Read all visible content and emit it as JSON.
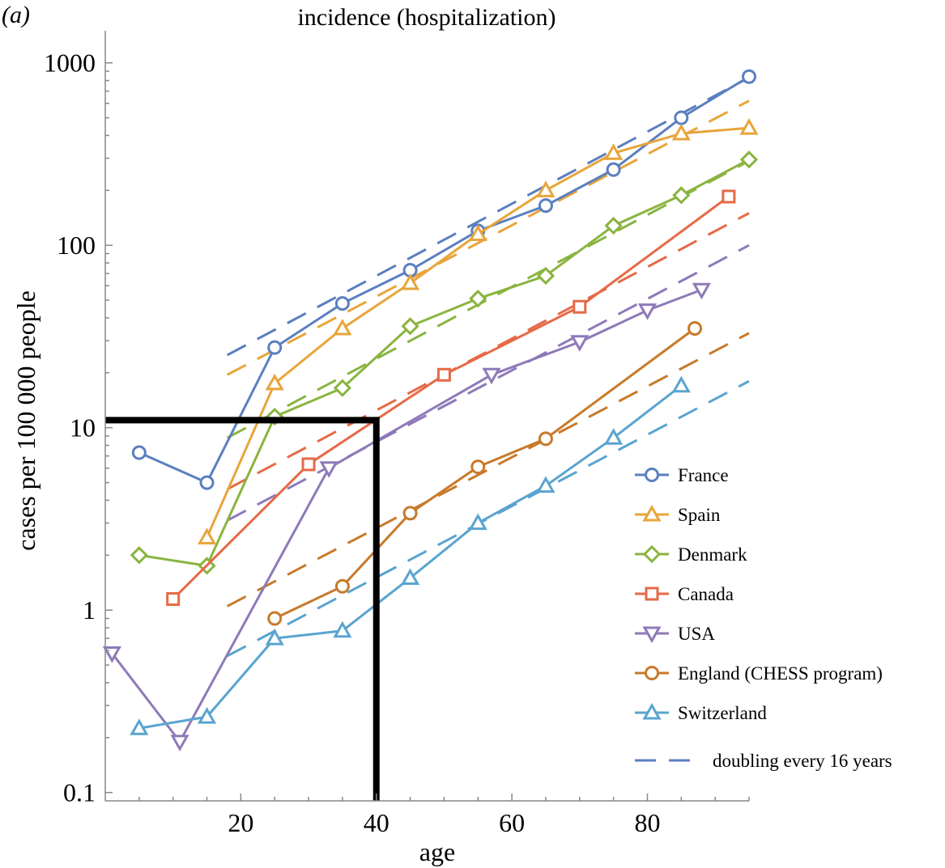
{
  "panel_label": "(a)",
  "chart_data": {
    "type": "line",
    "title": "incidence (hospitalization)",
    "xlabel": "age",
    "ylabel": "cases per 100 000 people",
    "xlim": [
      0,
      95
    ],
    "ylim": [
      0.09,
      1500
    ],
    "yscale": "log",
    "x_ticks": [
      20,
      40,
      60,
      80
    ],
    "y_ticks": [
      {
        "value": 0.1,
        "label": "0.1"
      },
      {
        "value": 1,
        "label": "1"
      },
      {
        "value": 10,
        "label": "10"
      },
      {
        "value": 100,
        "label": "100"
      },
      {
        "value": 1000,
        "label": "1000"
      }
    ],
    "grid": false,
    "legend_position": "right",
    "series": [
      {
        "name": "France",
        "color": "#5b7fbf",
        "marker": "circle",
        "x": [
          5,
          15,
          25,
          35,
          45,
          55,
          65,
          75,
          85,
          95
        ],
        "y": [
          7.3,
          5.0,
          27.5,
          48,
          73,
          120,
          165,
          260,
          500,
          840
        ]
      },
      {
        "name": "Spain",
        "color": "#e8a53a",
        "marker": "triangle-up",
        "x": [
          15,
          25,
          35,
          45,
          55,
          65,
          75,
          85,
          95
        ],
        "y": [
          2.5,
          17.5,
          35,
          62,
          115,
          200,
          320,
          410,
          440
        ]
      },
      {
        "name": "Denmark",
        "color": "#8ab440",
        "marker": "diamond",
        "x": [
          5,
          15,
          25,
          35,
          45,
          55,
          65,
          75,
          85,
          95
        ],
        "y": [
          2.0,
          1.75,
          11.5,
          16.5,
          36,
          51,
          68,
          128,
          188,
          295
        ]
      },
      {
        "name": "Canada",
        "color": "#e66a47",
        "marker": "square",
        "x": [
          10,
          30,
          50,
          70,
          92
        ],
        "y": [
          1.15,
          6.3,
          19.5,
          46,
          185
        ]
      },
      {
        "name": "USA",
        "color": "#8e7ab8",
        "marker": "triangle-down",
        "x": [
          1,
          11,
          33,
          57,
          70,
          80,
          88
        ],
        "y": [
          0.58,
          0.19,
          6.0,
          19.5,
          29.5,
          44,
          57
        ]
      },
      {
        "name": "England (CHESS program)",
        "color": "#c87a2a",
        "marker": "circle",
        "x": [
          25,
          35,
          45,
          55,
          65,
          87
        ],
        "y": [
          0.9,
          1.35,
          3.4,
          6.1,
          8.7,
          35
        ]
      },
      {
        "name": "Switzerland",
        "color": "#5aa4cf",
        "marker": "triangle-up",
        "x": [
          5,
          15,
          25,
          35,
          45,
          55,
          65,
          75,
          85
        ],
        "y": [
          0.225,
          0.26,
          0.7,
          0.77,
          1.5,
          3.0,
          4.8,
          8.8,
          17
        ]
      }
    ],
    "reference_label": "doubling every 16 years",
    "reference_lines": [
      {
        "color": "#5b7fbf",
        "x": [
          18,
          95
        ],
        "y": [
          25,
          830
        ]
      },
      {
        "color": "#e8a53a",
        "x": [
          18,
          95
        ],
        "y": [
          19.5,
          620
        ]
      },
      {
        "color": "#8ab440",
        "x": [
          18,
          95
        ],
        "y": [
          8.8,
          290
        ]
      },
      {
        "color": "#e66a47",
        "x": [
          18,
          95
        ],
        "y": [
          4.6,
          150
        ]
      },
      {
        "color": "#8e7ab8",
        "x": [
          18,
          95
        ],
        "y": [
          3.1,
          100
        ]
      },
      {
        "color": "#c87a2a",
        "x": [
          18,
          95
        ],
        "y": [
          1.05,
          33
        ]
      },
      {
        "color": "#5aa4cf",
        "x": [
          18,
          95
        ],
        "y": [
          0.56,
          18
        ]
      }
    ],
    "highlight_box": {
      "color": "#000000",
      "x_max": 40,
      "y_max": 11
    }
  }
}
